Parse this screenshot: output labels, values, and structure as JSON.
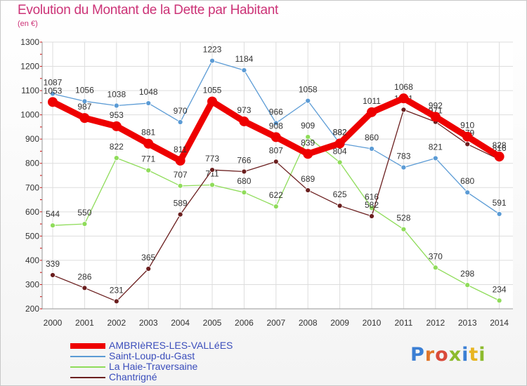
{
  "header": {
    "title": "Evolution du Montant de la Dette par Habitant",
    "subtitle": "(en €)"
  },
  "logo": {
    "text": "Proxiti",
    "letter_colors": [
      "#3b7fd4",
      "#e0762a",
      "#d94a3a",
      "#8dbb2e",
      "#3b7fd4",
      "#e8b521",
      "#8dbb2e"
    ]
  },
  "chart_data": {
    "type": "line",
    "title": "Evolution du Montant de la Dette par Habitant",
    "subtitle": "(en €)",
    "xlabel": "",
    "ylabel": "",
    "x": [
      "2000",
      "2001",
      "2002",
      "2003",
      "2004",
      "2005",
      "2006",
      "2007",
      "2008",
      "2009",
      "2010",
      "2011",
      "2012",
      "2013",
      "2014"
    ],
    "ylim": [
      200,
      1300
    ],
    "yticks": [
      200,
      300,
      400,
      500,
      600,
      700,
      800,
      900,
      1000,
      1100,
      1200,
      1300
    ],
    "grid": true,
    "legend_position": "bottom-left",
    "series": [
      {
        "name": "AMBRIèRES-LES-VALLéES",
        "color": "#ee0000",
        "style": "thick",
        "values": [
          1053,
          987,
          953,
          881,
          811,
          1055,
          973,
          908,
          839,
          882,
          1011,
          1068,
          992,
          910,
          828
        ]
      },
      {
        "name": "Saint-Loup-du-Gast",
        "color": "#5b9bd5",
        "style": "thin",
        "values": [
          1087,
          1056,
          1038,
          1048,
          970,
          1223,
          1184,
          966,
          1058,
          882,
          860,
          783,
          821,
          680,
          591
        ]
      },
      {
        "name": "La Haie-Traversaine",
        "color": "#8fdc5a",
        "style": "thin",
        "values": [
          544,
          550,
          822,
          771,
          707,
          711,
          680,
          622,
          909,
          804,
          616,
          528,
          370,
          298,
          234
        ]
      },
      {
        "name": "Chantrigné",
        "color": "#6b1f1f",
        "style": "thin",
        "values": [
          339,
          286,
          231,
          365,
          589,
          773,
          766,
          807,
          689,
          625,
          582,
          1021,
          971,
          879,
          816
        ]
      }
    ]
  }
}
